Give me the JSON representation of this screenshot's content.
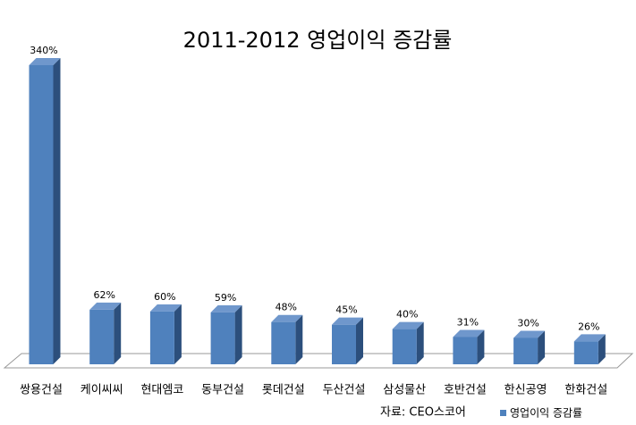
{
  "chart_data": {
    "type": "bar3d",
    "title": "2011-2012 영업이익 증감률",
    "categories": [
      "쌍용건설",
      "케이씨씨",
      "현대엠코",
      "동부건설",
      "롯데건설",
      "두산건설",
      "삼성물산",
      "호반건설",
      "한신공영",
      "한화건설"
    ],
    "series": [
      {
        "name": "영업이익 증감률",
        "color": "#4f81bd",
        "values": [
          340,
          62,
          60,
          59,
          48,
          45,
          40,
          31,
          30,
          26
        ],
        "value_labels": [
          "340%",
          "62%",
          "60%",
          "59%",
          "48%",
          "45%",
          "40%",
          "31%",
          "30%",
          "26%"
        ]
      }
    ],
    "source": "자료: CEO스코어",
    "legend": "bottom-right"
  }
}
